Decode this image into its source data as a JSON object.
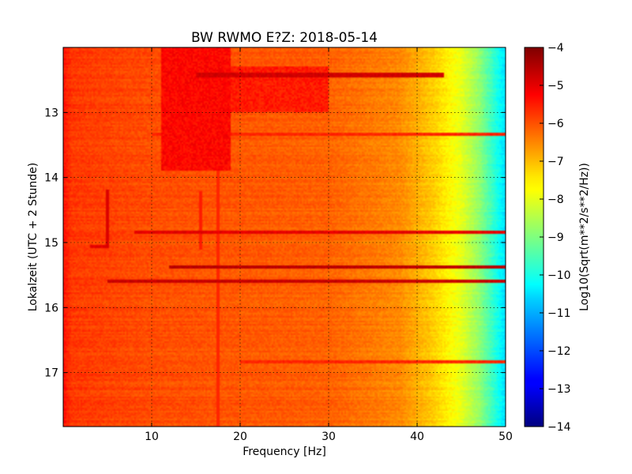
{
  "chart_data": {
    "type": "heatmap",
    "title": "BW RWMO E?Z: 2018-05-14",
    "xlabel": "Frequency [Hz]",
    "ylabel": "Lokalzeit (UTC + 2 Stunde)",
    "xlim": [
      0,
      50
    ],
    "ylim": [
      12.0,
      17.83
    ],
    "y_inverted": true,
    "x_ticks": [
      10,
      20,
      30,
      40,
      50
    ],
    "y_ticks": [
      13,
      14,
      15,
      16,
      17
    ],
    "grid": true,
    "colormap": "jet",
    "colorbar": {
      "label": "Log10(Sqrt(m**2/s**2/Hz))",
      "range": [
        -14,
        -4
      ],
      "ticks": [
        -4,
        -5,
        -6,
        -7,
        -8,
        -9,
        -10,
        -11,
        -12,
        -13,
        -14
      ]
    },
    "background_profile": [
      {
        "freq": 0,
        "value": -5.4
      },
      {
        "freq": 1,
        "value": -5.8
      },
      {
        "freq": 10,
        "value": -6.0
      },
      {
        "freq": 30,
        "value": -6.2
      },
      {
        "freq": 38,
        "value": -6.6
      },
      {
        "freq": 42,
        "value": -7.3
      },
      {
        "freq": 45,
        "value": -8.0
      },
      {
        "freq": 47,
        "value": -8.8
      },
      {
        "freq": 49,
        "value": -10.0
      },
      {
        "freq": 50,
        "value": -10.6
      }
    ],
    "horizontal_bands": [
      {
        "time": 12.42,
        "f_start": 15,
        "f_end": 43,
        "value": -4.8
      },
      {
        "time": 13.33,
        "f_start": 10,
        "f_end": 50,
        "value": -5.6
      },
      {
        "time": 14.84,
        "f_start": 8,
        "f_end": 50,
        "value": -5.0
      },
      {
        "time": 15.06,
        "f_start": 3,
        "f_end": 5,
        "value": -5.0
      },
      {
        "time": 15.38,
        "f_start": 12,
        "f_end": 50,
        "value": -4.6
      },
      {
        "time": 15.59,
        "f_start": 5,
        "f_end": 50,
        "value": -4.7
      },
      {
        "time": 16.84,
        "f_start": 20,
        "f_end": 50,
        "value": -5.6
      }
    ],
    "vertical_features": [
      {
        "freq": 5.0,
        "t_start": 14.18,
        "t_end": 15.08,
        "value": -4.9
      },
      {
        "freq": 15.5,
        "t_start": 14.2,
        "t_end": 15.1,
        "value": -5.5
      },
      {
        "freq": 17.5,
        "t_start": 12.0,
        "t_end": 17.83,
        "value": -5.6
      }
    ],
    "energetic_regions": [
      {
        "f_start": 11,
        "f_end": 19,
        "t_start": 12.0,
        "t_end": 13.9,
        "value": -5.3
      },
      {
        "f_start": 18,
        "f_end": 30,
        "t_start": 12.3,
        "t_end": 13.0,
        "value": -5.5
      }
    ]
  }
}
